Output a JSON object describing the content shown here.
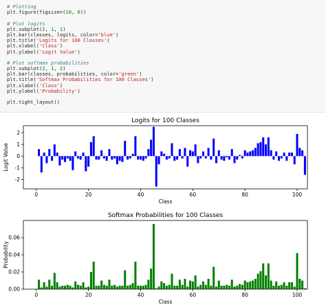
{
  "code": {
    "lines": [
      [
        {
          "t": "# Plotting",
          "c": "comment"
        }
      ],
      [
        {
          "t": "plt.figure(figsize=(",
          "c": ""
        },
        {
          "t": "10",
          "c": "number"
        },
        {
          "t": ", ",
          "c": ""
        },
        {
          "t": "6",
          "c": "number"
        },
        {
          "t": "))",
          "c": ""
        }
      ],
      [
        {
          "t": "",
          "c": ""
        }
      ],
      [
        {
          "t": "# Plot logits",
          "c": "comment"
        }
      ],
      [
        {
          "t": "plt.subplot(",
          "c": ""
        },
        {
          "t": "2",
          "c": "number"
        },
        {
          "t": ", ",
          "c": ""
        },
        {
          "t": "1",
          "c": "number"
        },
        {
          "t": ", ",
          "c": ""
        },
        {
          "t": "1",
          "c": "number"
        },
        {
          "t": ")",
          "c": ""
        }
      ],
      [
        {
          "t": "plt.bar(classes, logits, color=",
          "c": ""
        },
        {
          "t": "'blue'",
          "c": "string"
        },
        {
          "t": ")",
          "c": ""
        }
      ],
      [
        {
          "t": "plt.title(",
          "c": ""
        },
        {
          "t": "'Logits for 100 Classes'",
          "c": "string"
        },
        {
          "t": ")",
          "c": ""
        }
      ],
      [
        {
          "t": "plt.xlabel(",
          "c": ""
        },
        {
          "t": "'Class'",
          "c": "string"
        },
        {
          "t": ")",
          "c": ""
        }
      ],
      [
        {
          "t": "plt.ylabel(",
          "c": ""
        },
        {
          "t": "'Logit Value'",
          "c": "string"
        },
        {
          "t": ")",
          "c": ""
        }
      ],
      [
        {
          "t": "",
          "c": ""
        }
      ],
      [
        {
          "t": "# Plot softmax probabilities",
          "c": "comment"
        }
      ],
      [
        {
          "t": "plt.subplot(",
          "c": ""
        },
        {
          "t": "2",
          "c": "number"
        },
        {
          "t": ", ",
          "c": ""
        },
        {
          "t": "1",
          "c": "number"
        },
        {
          "t": ", ",
          "c": ""
        },
        {
          "t": "2",
          "c": "number"
        },
        {
          "t": ")",
          "c": ""
        }
      ],
      [
        {
          "t": "plt.bar(classes, probabilities, color=",
          "c": ""
        },
        {
          "t": "'green'",
          "c": "string"
        },
        {
          "t": ")",
          "c": ""
        }
      ],
      [
        {
          "t": "plt.title(",
          "c": ""
        },
        {
          "t": "'Softmax Probabilities for 100 Classes'",
          "c": "string"
        },
        {
          "t": ")",
          "c": ""
        }
      ],
      [
        {
          "t": "plt.xlabel(",
          "c": ""
        },
        {
          "t": "'Class'",
          "c": "string"
        },
        {
          "t": ")",
          "c": ""
        }
      ],
      [
        {
          "t": "plt.ylabel(",
          "c": ""
        },
        {
          "t": "'Probability'",
          "c": "string"
        },
        {
          "t": ")",
          "c": ""
        }
      ],
      [
        {
          "t": "",
          "c": ""
        }
      ],
      [
        {
          "t": "plt.tight_layout()",
          "c": ""
        }
      ]
    ]
  },
  "chart_data": [
    {
      "type": "bar",
      "title": "Logits for 100 Classes",
      "xlabel": "Class",
      "ylabel": "Logit Value",
      "color": "#0000ff",
      "xlim": [
        -4.95,
        103.95
      ],
      "ylim": [
        -2.8,
        2.6
      ],
      "xticks": [
        0,
        20,
        40,
        60,
        80,
        100
      ],
      "yticks": [
        -2,
        -1,
        0,
        1,
        2
      ],
      "x_start": 1,
      "values": [
        0.6,
        -1.4,
        0.3,
        -0.6,
        0.6,
        -0.4,
        1.0,
        0.3,
        -0.8,
        -0.3,
        -0.5,
        -0.2,
        -0.4,
        -1.2,
        0.4,
        -0.2,
        -0.3,
        0.3,
        -1.3,
        -0.9,
        1.2,
        1.7,
        -0.3,
        -0.3,
        0.5,
        -0.2,
        -0.4,
        0.6,
        -0.3,
        -0.2,
        -0.7,
        -0.4,
        -0.5,
        1.3,
        -0.3,
        -0.2,
        0.2,
        1.7,
        -0.3,
        -0.3,
        -0.4,
        -0.2,
        0.6,
        1.4,
        2.5,
        -2.6,
        -0.7,
        0.4,
        0.2,
        -0.3,
        -0.2,
        1.1,
        -0.4,
        -0.3,
        0.6,
        -0.2,
        0.7,
        -0.9,
        0.5,
        0.4,
        1.0,
        -0.6,
        -0.2,
        0.4,
        -0.2,
        0.7,
        -0.3,
        1.5,
        -0.6,
        0.5,
        -0.3,
        -0.4,
        -0.1,
        -0.3,
        0.6,
        -0.6,
        -0.3,
        0.1,
        -0.2,
        0.5,
        0.3,
        0.4,
        0.5,
        0.7,
        1.1,
        1.2,
        1.6,
        1.0,
        1.6,
        0.5,
        -0.3,
        0.4,
        -0.4,
        -0.2,
        0.3,
        -0.4,
        0.3,
        0.3,
        -0.7,
        1.9,
        0.7,
        0.5,
        -1.6
      ]
    },
    {
      "type": "bar",
      "title": "Softmax Probabilities for 100 Classes",
      "xlabel": "Class",
      "ylabel": "Probability",
      "color": "#008000",
      "xlim": [
        -4.95,
        103.95
      ],
      "ylim": [
        0,
        0.08
      ],
      "xticks": [
        0,
        20,
        40,
        60,
        80,
        100
      ],
      "yticks": [
        0.0,
        0.02,
        0.04,
        0.06
      ],
      "ytick_labels": [
        "0.00",
        "0.02",
        "0.04",
        "0.06"
      ],
      "x_start": 1,
      "values": [
        0.011,
        0.002,
        0.008,
        0.003,
        0.011,
        0.004,
        0.019,
        0.008,
        0.003,
        0.004,
        0.004,
        0.005,
        0.004,
        0.002,
        0.009,
        0.005,
        0.004,
        0.008,
        0.002,
        0.003,
        0.02,
        0.032,
        0.004,
        0.004,
        0.01,
        0.005,
        0.004,
        0.011,
        0.004,
        0.005,
        0.003,
        0.004,
        0.004,
        0.022,
        0.004,
        0.005,
        0.007,
        0.032,
        0.004,
        0.004,
        0.004,
        0.005,
        0.011,
        0.024,
        0.076,
        0.001,
        0.003,
        0.009,
        0.007,
        0.004,
        0.005,
        0.018,
        0.004,
        0.004,
        0.011,
        0.005,
        0.012,
        0.003,
        0.01,
        0.009,
        0.016,
        0.003,
        0.005,
        0.009,
        0.005,
        0.012,
        0.004,
        0.026,
        0.003,
        0.01,
        0.004,
        0.004,
        0.005,
        0.004,
        0.011,
        0.003,
        0.004,
        0.006,
        0.005,
        0.01,
        0.008,
        0.009,
        0.01,
        0.012,
        0.018,
        0.021,
        0.03,
        0.016,
        0.03,
        0.01,
        0.004,
        0.009,
        0.004,
        0.005,
        0.008,
        0.004,
        0.008,
        0.008,
        0.003,
        0.042,
        0.012,
        0.01,
        0.001
      ]
    }
  ]
}
